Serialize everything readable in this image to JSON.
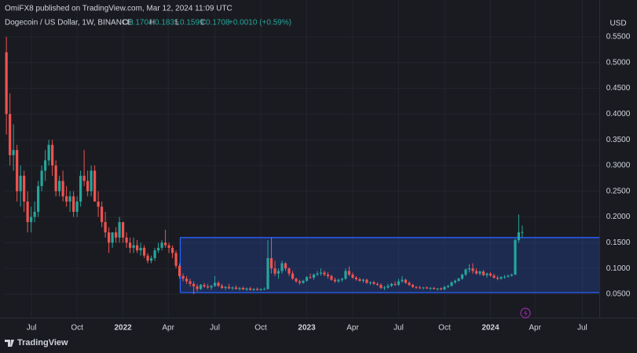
{
  "header": {
    "publisher": "OmiFX8 published on TradingView.com, Mar 12, 2024 11:09 UTC"
  },
  "footer": {
    "brand": "TradingView"
  },
  "chart_data": {
    "type": "candlestick",
    "symbol": "Dogecoin / US Dollar, 1W, BINANCE",
    "ohlc_labels": [
      "O",
      "H",
      "L",
      "C"
    ],
    "change": "+0.0010 (+0.59%)",
    "currency": "USD",
    "up_color": "#26a69a",
    "down_color": "#ef5350",
    "grid": true,
    "xlim": [
      -0.7,
      167.8
    ],
    "xticks": [
      {
        "value": 7.1,
        "label": "Jul"
      },
      {
        "value": 20,
        "label": "Oct"
      },
      {
        "value": 33,
        "label": "2022"
      },
      {
        "value": 45.8,
        "label": "Apr"
      },
      {
        "value": 59,
        "label": "Jul"
      },
      {
        "value": 72,
        "label": "Oct"
      },
      {
        "value": 85,
        "label": "2023"
      },
      {
        "value": 98,
        "label": "Apr"
      },
      {
        "value": 111,
        "label": "Jul"
      },
      {
        "value": 124,
        "label": "Oct"
      },
      {
        "value": 137,
        "label": "2024"
      },
      {
        "value": 149.6,
        "label": "Apr"
      },
      {
        "value": 163,
        "label": "Jul"
      }
    ],
    "ylim": [
      0.0073,
      0.588
    ],
    "yticks": [
      {
        "value": 0.05,
        "label": "0.0500"
      },
      {
        "value": 0.1,
        "label": "0.1000"
      },
      {
        "value": 0.15,
        "label": "0.1500"
      },
      {
        "value": 0.2,
        "label": "0.2000"
      },
      {
        "value": 0.25,
        "label": "0.2500"
      },
      {
        "value": 0.3,
        "label": "0.3000"
      },
      {
        "value": 0.35,
        "label": "0.3500"
      },
      {
        "value": 0.4,
        "label": "0.4000"
      },
      {
        "value": 0.45,
        "label": "0.4500"
      },
      {
        "value": 0.5,
        "label": "0.5000"
      },
      {
        "value": 0.55,
        "label": "0.5500"
      }
    ],
    "box": {
      "top": 0.16,
      "bottom": 0.053,
      "start": 49.2,
      "color": "#2962ff"
    },
    "candles": [
      [
        0.52,
        0.55,
        0.36,
        0.4
      ],
      [
        0.4,
        0.44,
        0.3,
        0.32
      ],
      [
        0.32,
        0.38,
        0.29,
        0.33
      ],
      [
        0.33,
        0.34,
        0.23,
        0.25
      ],
      [
        0.25,
        0.3,
        0.22,
        0.28
      ],
      [
        0.28,
        0.29,
        0.21,
        0.23
      ],
      [
        0.23,
        0.25,
        0.17,
        0.19
      ],
      [
        0.19,
        0.22,
        0.17,
        0.2
      ],
      [
        0.2,
        0.23,
        0.19,
        0.21
      ],
      [
        0.21,
        0.27,
        0.2,
        0.26
      ],
      [
        0.26,
        0.3,
        0.25,
        0.29
      ],
      [
        0.29,
        0.33,
        0.27,
        0.31
      ],
      [
        0.31,
        0.35,
        0.3,
        0.34
      ],
      [
        0.34,
        0.35,
        0.28,
        0.3
      ],
      [
        0.3,
        0.31,
        0.24,
        0.25
      ],
      [
        0.25,
        0.28,
        0.24,
        0.27
      ],
      [
        0.27,
        0.29,
        0.23,
        0.24
      ],
      [
        0.24,
        0.26,
        0.22,
        0.23
      ],
      [
        0.23,
        0.25,
        0.21,
        0.24
      ],
      [
        0.24,
        0.25,
        0.2,
        0.21
      ],
      [
        0.21,
        0.24,
        0.2,
        0.23
      ],
      [
        0.23,
        0.29,
        0.22,
        0.28
      ],
      [
        0.28,
        0.33,
        0.26,
        0.27
      ],
      [
        0.27,
        0.29,
        0.24,
        0.25
      ],
      [
        0.25,
        0.3,
        0.24,
        0.29
      ],
      [
        0.29,
        0.3,
        0.23,
        0.23
      ],
      [
        0.23,
        0.25,
        0.2,
        0.22
      ],
      [
        0.22,
        0.23,
        0.18,
        0.19
      ],
      [
        0.19,
        0.21,
        0.16,
        0.17
      ],
      [
        0.17,
        0.18,
        0.13,
        0.15
      ],
      [
        0.15,
        0.17,
        0.14,
        0.17
      ],
      [
        0.17,
        0.18,
        0.15,
        0.16
      ],
      [
        0.16,
        0.2,
        0.15,
        0.19
      ],
      [
        0.19,
        0.19,
        0.15,
        0.16
      ],
      [
        0.16,
        0.17,
        0.14,
        0.15
      ],
      [
        0.15,
        0.16,
        0.13,
        0.14
      ],
      [
        0.14,
        0.16,
        0.13,
        0.145
      ],
      [
        0.145,
        0.155,
        0.13,
        0.135
      ],
      [
        0.135,
        0.15,
        0.125,
        0.14
      ],
      [
        0.14,
        0.145,
        0.12,
        0.125
      ],
      [
        0.125,
        0.13,
        0.11,
        0.115
      ],
      [
        0.115,
        0.125,
        0.11,
        0.12
      ],
      [
        0.12,
        0.14,
        0.115,
        0.135
      ],
      [
        0.135,
        0.15,
        0.13,
        0.14
      ],
      [
        0.14,
        0.155,
        0.135,
        0.15
      ],
      [
        0.15,
        0.175,
        0.14,
        0.145
      ],
      [
        0.145,
        0.15,
        0.13,
        0.14
      ],
      [
        0.14,
        0.145,
        0.12,
        0.13
      ],
      [
        0.13,
        0.135,
        0.1,
        0.105
      ],
      [
        0.105,
        0.11,
        0.08,
        0.085
      ],
      [
        0.085,
        0.09,
        0.075,
        0.08
      ],
      [
        0.08,
        0.085,
        0.07,
        0.075
      ],
      [
        0.075,
        0.08,
        0.065,
        0.07
      ],
      [
        0.07,
        0.075,
        0.05,
        0.065
      ],
      [
        0.065,
        0.07,
        0.055,
        0.06
      ],
      [
        0.06,
        0.07,
        0.058,
        0.068
      ],
      [
        0.068,
        0.072,
        0.062,
        0.065
      ],
      [
        0.065,
        0.07,
        0.06,
        0.063
      ],
      [
        0.063,
        0.068,
        0.058,
        0.066
      ],
      [
        0.066,
        0.085,
        0.064,
        0.072
      ],
      [
        0.072,
        0.075,
        0.064,
        0.066
      ],
      [
        0.066,
        0.07,
        0.06,
        0.062
      ],
      [
        0.062,
        0.066,
        0.058,
        0.064
      ],
      [
        0.064,
        0.07,
        0.06,
        0.061
      ],
      [
        0.061,
        0.065,
        0.058,
        0.063
      ],
      [
        0.063,
        0.067,
        0.059,
        0.06
      ],
      [
        0.06,
        0.064,
        0.057,
        0.062
      ],
      [
        0.062,
        0.065,
        0.058,
        0.059
      ],
      [
        0.059,
        0.063,
        0.056,
        0.061
      ],
      [
        0.061,
        0.064,
        0.057,
        0.058
      ],
      [
        0.058,
        0.062,
        0.056,
        0.06
      ],
      [
        0.06,
        0.063,
        0.057,
        0.058
      ],
      [
        0.058,
        0.061,
        0.057,
        0.06
      ],
      [
        0.06,
        0.063,
        0.058,
        0.06
      ],
      [
        0.06,
        0.155,
        0.059,
        0.12
      ],
      [
        0.12,
        0.16,
        0.09,
        0.1
      ],
      [
        0.1,
        0.115,
        0.085,
        0.09
      ],
      [
        0.09,
        0.1,
        0.08,
        0.095
      ],
      [
        0.095,
        0.115,
        0.09,
        0.11
      ],
      [
        0.11,
        0.112,
        0.095,
        0.1
      ],
      [
        0.1,
        0.102,
        0.085,
        0.09
      ],
      [
        0.09,
        0.095,
        0.078,
        0.08
      ],
      [
        0.08,
        0.082,
        0.072,
        0.075
      ],
      [
        0.075,
        0.078,
        0.068,
        0.072
      ],
      [
        0.072,
        0.078,
        0.07,
        0.076
      ],
      [
        0.076,
        0.085,
        0.074,
        0.083
      ],
      [
        0.083,
        0.09,
        0.08,
        0.082
      ],
      [
        0.082,
        0.09,
        0.078,
        0.088
      ],
      [
        0.088,
        0.095,
        0.085,
        0.09
      ],
      [
        0.09,
        0.1,
        0.086,
        0.092
      ],
      [
        0.092,
        0.096,
        0.085,
        0.088
      ],
      [
        0.088,
        0.093,
        0.08,
        0.085
      ],
      [
        0.085,
        0.088,
        0.076,
        0.078
      ],
      [
        0.078,
        0.082,
        0.072,
        0.075
      ],
      [
        0.075,
        0.08,
        0.072,
        0.078
      ],
      [
        0.078,
        0.082,
        0.074,
        0.08
      ],
      [
        0.08,
        0.1,
        0.078,
        0.095
      ],
      [
        0.095,
        0.104,
        0.085,
        0.088
      ],
      [
        0.088,
        0.092,
        0.08,
        0.082
      ],
      [
        0.082,
        0.085,
        0.076,
        0.079
      ],
      [
        0.079,
        0.082,
        0.074,
        0.076
      ],
      [
        0.076,
        0.08,
        0.072,
        0.078
      ],
      [
        0.078,
        0.08,
        0.07,
        0.072
      ],
      [
        0.072,
        0.075,
        0.068,
        0.073
      ],
      [
        0.073,
        0.076,
        0.068,
        0.07
      ],
      [
        0.07,
        0.073,
        0.066,
        0.068
      ],
      [
        0.068,
        0.071,
        0.06,
        0.062
      ],
      [
        0.062,
        0.066,
        0.058,
        0.063
      ],
      [
        0.063,
        0.07,
        0.061,
        0.066
      ],
      [
        0.066,
        0.072,
        0.064,
        0.07
      ],
      [
        0.07,
        0.075,
        0.066,
        0.068
      ],
      [
        0.068,
        0.08,
        0.066,
        0.075
      ],
      [
        0.075,
        0.085,
        0.072,
        0.078
      ],
      [
        0.078,
        0.08,
        0.07,
        0.072
      ],
      [
        0.072,
        0.075,
        0.066,
        0.068
      ],
      [
        0.068,
        0.07,
        0.062,
        0.064
      ],
      [
        0.064,
        0.066,
        0.06,
        0.063
      ],
      [
        0.063,
        0.066,
        0.06,
        0.062
      ],
      [
        0.062,
        0.064,
        0.059,
        0.063
      ],
      [
        0.063,
        0.065,
        0.06,
        0.061
      ],
      [
        0.061,
        0.064,
        0.058,
        0.062
      ],
      [
        0.062,
        0.064,
        0.059,
        0.06
      ],
      [
        0.06,
        0.062,
        0.057,
        0.061
      ],
      [
        0.061,
        0.063,
        0.058,
        0.059
      ],
      [
        0.059,
        0.066,
        0.058,
        0.064
      ],
      [
        0.064,
        0.068,
        0.062,
        0.066
      ],
      [
        0.066,
        0.075,
        0.065,
        0.073
      ],
      [
        0.073,
        0.078,
        0.07,
        0.076
      ],
      [
        0.076,
        0.082,
        0.074,
        0.08
      ],
      [
        0.08,
        0.09,
        0.078,
        0.088
      ],
      [
        0.088,
        0.1,
        0.085,
        0.098
      ],
      [
        0.098,
        0.108,
        0.092,
        0.1
      ],
      [
        0.1,
        0.11,
        0.09,
        0.095
      ],
      [
        0.095,
        0.1,
        0.088,
        0.09
      ],
      [
        0.09,
        0.096,
        0.086,
        0.094
      ],
      [
        0.094,
        0.097,
        0.085,
        0.087
      ],
      [
        0.087,
        0.092,
        0.082,
        0.09
      ],
      [
        0.09,
        0.093,
        0.084,
        0.086
      ],
      [
        0.086,
        0.09,
        0.08,
        0.082
      ],
      [
        0.082,
        0.086,
        0.077,
        0.08
      ],
      [
        0.08,
        0.085,
        0.078,
        0.083
      ],
      [
        0.083,
        0.087,
        0.08,
        0.084
      ],
      [
        0.084,
        0.088,
        0.082,
        0.086
      ],
      [
        0.086,
        0.09,
        0.084,
        0.088
      ],
      [
        0.088,
        0.158,
        0.087,
        0.155
      ],
      [
        0.155,
        0.205,
        0.15,
        0.17
      ],
      [
        0.1704,
        0.1835,
        0.1599,
        0.1708
      ]
    ]
  }
}
